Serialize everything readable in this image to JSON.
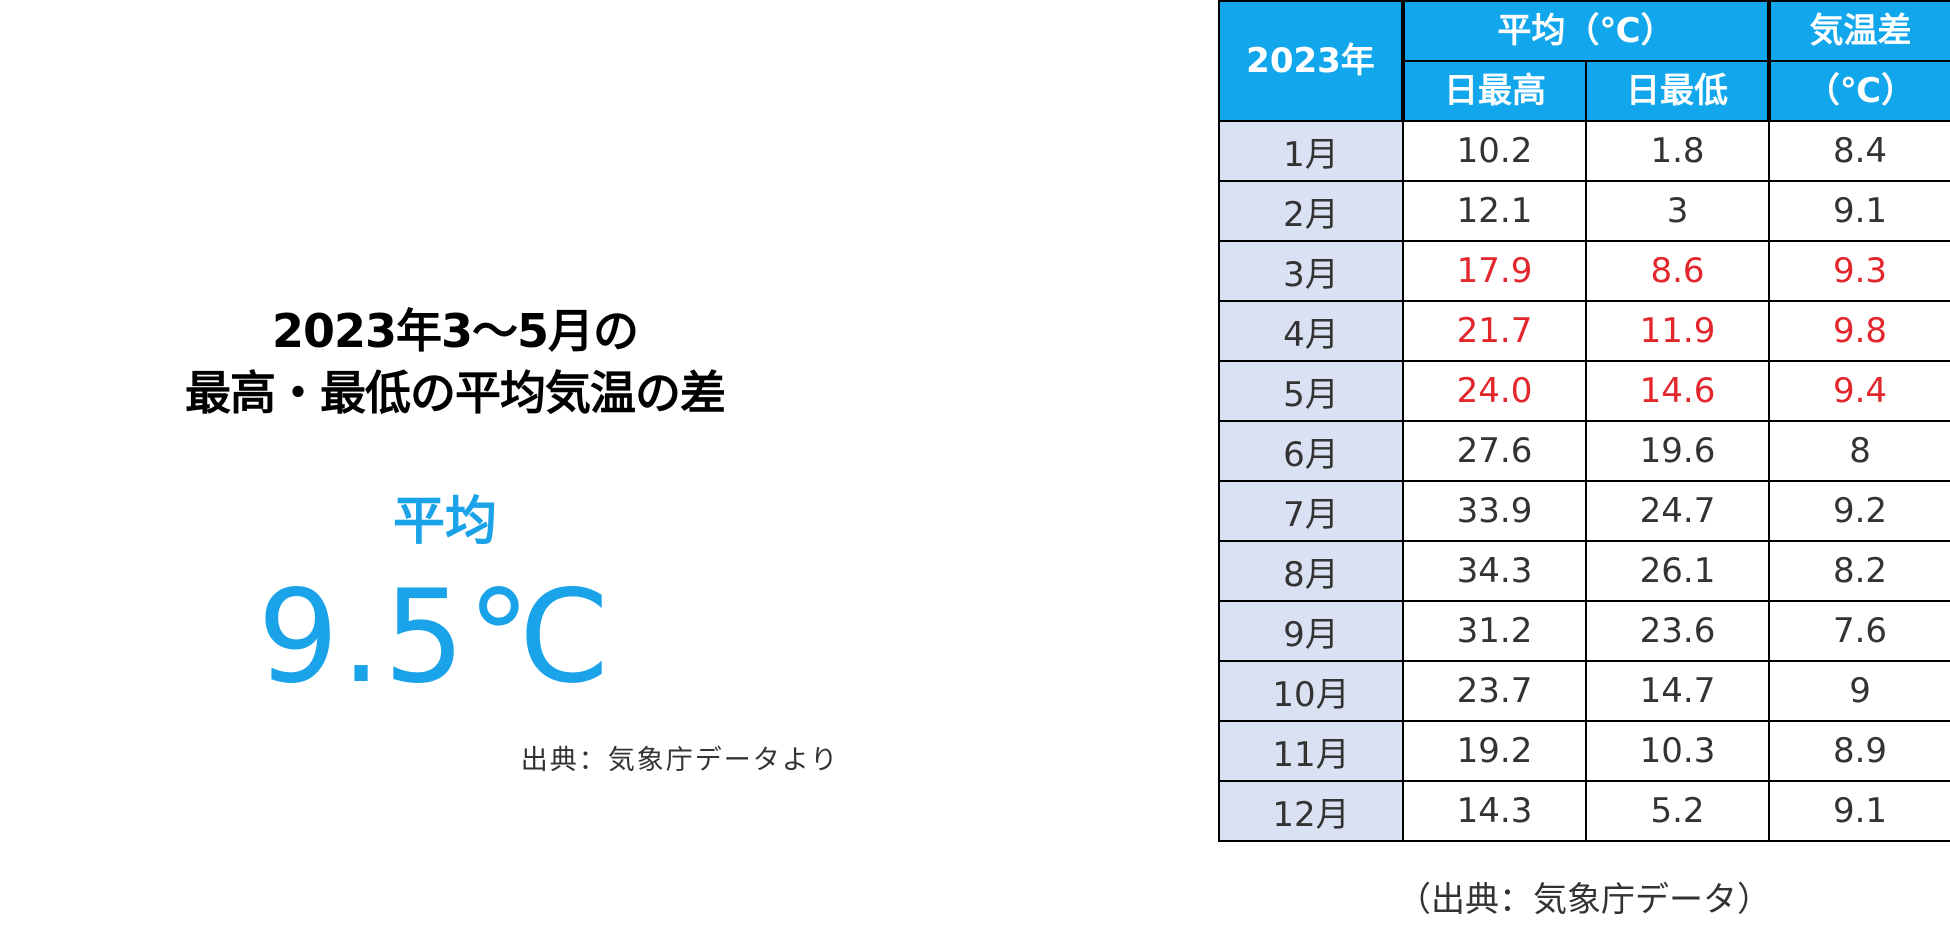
{
  "headline": {
    "line1": "2023年3〜5月の",
    "line2": "最高・最低の平均気温の差"
  },
  "summary": {
    "label": "平均",
    "value": "9.5℃",
    "source": "出典：気象庁データより"
  },
  "table": {
    "header": {
      "year": "2023年",
      "avg_group": "平均（℃）",
      "daily_max": "日最高",
      "daily_min": "日最低",
      "diff_line1": "気温差",
      "diff_line2": "（℃）"
    },
    "rows": [
      {
        "month": "1月",
        "max": "10.2",
        "min": "1.8",
        "diff": "8.4",
        "highlight": false
      },
      {
        "month": "2月",
        "max": "12.1",
        "min": "3",
        "diff": "9.1",
        "highlight": false
      },
      {
        "month": "3月",
        "max": "17.9",
        "min": "8.6",
        "diff": "9.3",
        "highlight": true
      },
      {
        "month": "4月",
        "max": "21.7",
        "min": "11.9",
        "diff": "9.8",
        "highlight": true
      },
      {
        "month": "5月",
        "max": "24.0",
        "min": "14.6",
        "diff": "9.4",
        "highlight": true
      },
      {
        "month": "6月",
        "max": "27.6",
        "min": "19.6",
        "diff": "8",
        "highlight": false
      },
      {
        "month": "7月",
        "max": "33.9",
        "min": "24.7",
        "diff": "9.2",
        "highlight": false
      },
      {
        "month": "8月",
        "max": "34.3",
        "min": "26.1",
        "diff": "8.2",
        "highlight": false
      },
      {
        "month": "9月",
        "max": "31.2",
        "min": "23.6",
        "diff": "7.6",
        "highlight": false
      },
      {
        "month": "10月",
        "max": "23.7",
        "min": "14.7",
        "diff": "9",
        "highlight": false
      },
      {
        "month": "11月",
        "max": "19.2",
        "min": "10.3",
        "diff": "8.9",
        "highlight": false
      },
      {
        "month": "12月",
        "max": "14.3",
        "min": "5.2",
        "diff": "9.1",
        "highlight": false
      }
    ],
    "source": "（出典：気象庁データ）"
  },
  "colors": {
    "accent": "#1aa3e8",
    "header_bg": "#12a7ec",
    "month_bg": "#d9e1f2",
    "highlight": "#e2262b"
  },
  "chart_data": {
    "type": "table",
    "title": "",
    "columns": [
      "2023年",
      "日最高",
      "日最低",
      "気温差（℃）"
    ],
    "categories": [
      "1月",
      "2月",
      "3月",
      "4月",
      "5月",
      "6月",
      "7月",
      "8月",
      "9月",
      "10月",
      "11月",
      "12月"
    ],
    "series": [
      {
        "name": "日最高",
        "values": [
          10.2,
          12.1,
          17.9,
          21.7,
          24.0,
          27.6,
          33.9,
          34.3,
          31.2,
          23.7,
          19.2,
          14.3
        ]
      },
      {
        "name": "日最低",
        "values": [
          1.8,
          3,
          8.6,
          11.9,
          14.6,
          19.6,
          24.7,
          26.1,
          23.6,
          14.7,
          10.3,
          5.2
        ]
      },
      {
        "name": "気温差",
        "values": [
          8.4,
          9.1,
          9.3,
          9.8,
          9.4,
          8,
          9.2,
          8.2,
          7.6,
          9,
          8.9,
          9.1
        ]
      }
    ],
    "highlighted_categories": [
      "3月",
      "4月",
      "5月"
    ]
  }
}
